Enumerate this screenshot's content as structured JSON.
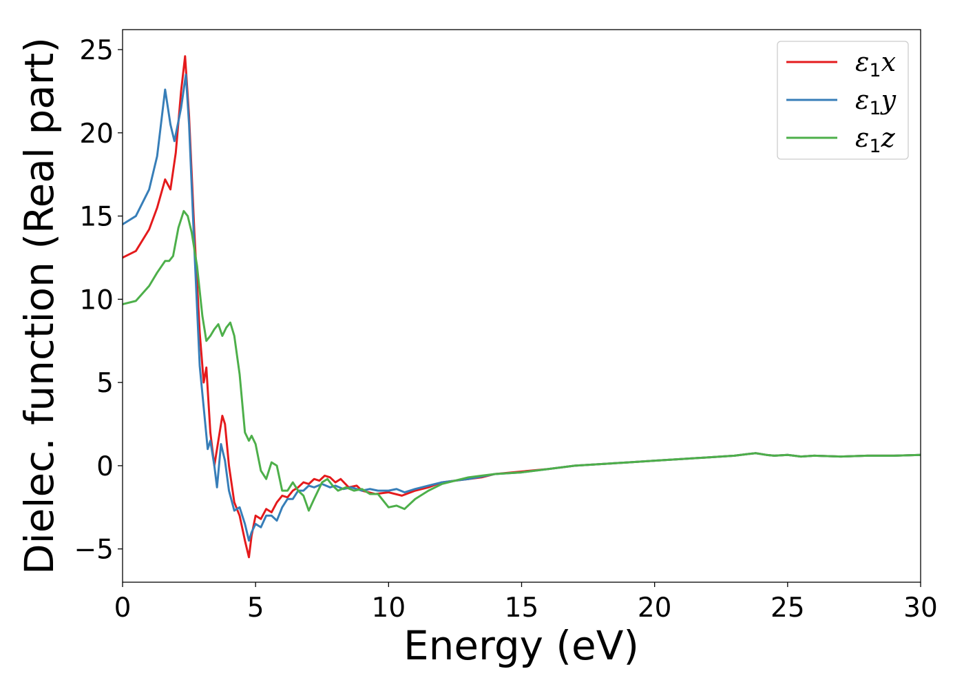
{
  "chart_data": {
    "type": "line",
    "title": "",
    "xlabel": "Energy (eV)",
    "ylabel": "Dielec. function (Real part)",
    "xlim": [
      0,
      30
    ],
    "ylim": [
      -7,
      26.2
    ],
    "xticks": [
      0,
      5,
      10,
      15,
      20,
      25,
      30
    ],
    "xtick_labels": [
      "0",
      "5",
      "10",
      "15",
      "20",
      "25",
      "30"
    ],
    "yticks": [
      -5,
      0,
      5,
      10,
      15,
      20,
      25
    ],
    "ytick_labels": [
      "−5",
      "0",
      "5",
      "10",
      "15",
      "20",
      "25"
    ],
    "grid": false,
    "legend_position": "top-right",
    "series": [
      {
        "name": "ε₁x",
        "legend_symbol": "ε",
        "legend_sub": "1",
        "legend_suffix": "x",
        "color": "#e41a1c",
        "x": [
          0,
          0.5,
          1.0,
          1.3,
          1.6,
          1.8,
          2.0,
          2.2,
          2.35,
          2.5,
          2.7,
          2.9,
          3.05,
          3.15,
          3.3,
          3.45,
          3.55,
          3.75,
          3.85,
          4.0,
          4.2,
          4.4,
          4.6,
          4.75,
          4.85,
          5.0,
          5.2,
          5.4,
          5.6,
          5.8,
          6.0,
          6.2,
          6.4,
          6.6,
          6.8,
          7.0,
          7.2,
          7.4,
          7.6,
          7.8,
          8.0,
          8.2,
          8.5,
          8.8,
          9.0,
          9.5,
          10.0,
          10.5,
          11.0,
          11.5,
          12.0,
          12.5,
          13.0,
          13.5,
          14.0,
          15.0,
          16.0,
          17.0,
          18.0,
          19.0,
          20.0,
          21.0,
          22.0,
          23.0,
          23.5,
          23.8,
          24.2,
          24.5,
          25.0,
          25.5,
          26.0,
          27.0,
          28.0,
          29.0,
          30.0
        ],
        "values": [
          12.5,
          12.9,
          14.2,
          15.5,
          17.2,
          16.6,
          18.8,
          22.5,
          24.6,
          21.0,
          14.0,
          8.0,
          5.0,
          5.9,
          2.0,
          0.0,
          1.0,
          3.0,
          2.5,
          0.0,
          -2.2,
          -3.0,
          -4.5,
          -5.5,
          -4.2,
          -3.0,
          -3.2,
          -2.6,
          -2.8,
          -2.2,
          -1.8,
          -1.9,
          -1.5,
          -1.3,
          -1.0,
          -1.1,
          -0.8,
          -0.9,
          -0.6,
          -0.7,
          -1.0,
          -0.8,
          -1.3,
          -1.2,
          -1.5,
          -1.7,
          -1.6,
          -1.8,
          -1.5,
          -1.3,
          -1.0,
          -0.9,
          -0.8,
          -0.7,
          -0.5,
          -0.35,
          -0.2,
          0.0,
          0.1,
          0.2,
          0.3,
          0.4,
          0.5,
          0.6,
          0.7,
          0.75,
          0.65,
          0.6,
          0.65,
          0.55,
          0.6,
          0.55,
          0.6,
          0.6,
          0.65
        ]
      },
      {
        "name": "ε₁y",
        "legend_symbol": "ε",
        "legend_sub": "1",
        "legend_suffix": "y",
        "color": "#377eb8",
        "x": [
          0,
          0.5,
          1.0,
          1.3,
          1.6,
          1.8,
          1.95,
          2.1,
          2.2,
          2.38,
          2.5,
          2.7,
          2.9,
          3.05,
          3.2,
          3.3,
          3.45,
          3.55,
          3.7,
          3.85,
          4.0,
          4.2,
          4.4,
          4.6,
          4.75,
          4.85,
          5.0,
          5.2,
          5.4,
          5.6,
          5.8,
          6.0,
          6.2,
          6.4,
          6.6,
          6.8,
          7.0,
          7.2,
          7.5,
          7.8,
          8.0,
          8.3,
          8.6,
          9.0,
          9.3,
          9.6,
          10.0,
          10.3,
          10.6,
          11.0,
          11.5,
          12.0,
          12.5,
          13.0,
          13.5,
          14.0,
          15.0,
          16.0,
          17.0,
          18.0,
          19.0,
          20.0,
          21.0,
          22.0,
          23.0,
          23.5,
          23.8,
          24.2,
          24.5,
          25.0,
          25.5,
          26.0,
          27.0,
          28.0,
          29.0,
          30.0
        ],
        "values": [
          14.5,
          15.0,
          16.6,
          18.6,
          22.6,
          20.5,
          19.5,
          20.7,
          21.5,
          23.5,
          20.5,
          13.0,
          6.0,
          3.5,
          1.0,
          1.5,
          0.0,
          -1.3,
          1.3,
          0.3,
          -1.5,
          -2.7,
          -2.5,
          -3.5,
          -4.5,
          -4.0,
          -3.5,
          -3.7,
          -3.0,
          -3.0,
          -3.3,
          -2.5,
          -2.0,
          -2.0,
          -1.5,
          -1.5,
          -1.2,
          -1.3,
          -1.1,
          -1.3,
          -1.2,
          -1.4,
          -1.3,
          -1.5,
          -1.4,
          -1.5,
          -1.5,
          -1.4,
          -1.6,
          -1.4,
          -1.2,
          -1.0,
          -0.9,
          -0.8,
          -0.65,
          -0.5,
          -0.4,
          -0.2,
          0.0,
          0.1,
          0.2,
          0.3,
          0.4,
          0.5,
          0.6,
          0.7,
          0.75,
          0.65,
          0.6,
          0.65,
          0.55,
          0.6,
          0.55,
          0.6,
          0.6,
          0.65
        ]
      },
      {
        "name": "ε₁z",
        "legend_symbol": "ε",
        "legend_sub": "1",
        "legend_suffix": "z",
        "color": "#4daf4a",
        "x": [
          0,
          0.5,
          1.0,
          1.3,
          1.6,
          1.75,
          1.9,
          2.1,
          2.3,
          2.45,
          2.6,
          2.8,
          3.0,
          3.15,
          3.3,
          3.45,
          3.6,
          3.75,
          3.9,
          4.05,
          4.2,
          4.4,
          4.6,
          4.75,
          4.85,
          5.0,
          5.2,
          5.4,
          5.6,
          5.8,
          6.0,
          6.2,
          6.4,
          6.6,
          6.8,
          7.0,
          7.2,
          7.5,
          7.7,
          7.9,
          8.1,
          8.4,
          8.7,
          9.0,
          9.3,
          9.6,
          10.0,
          10.3,
          10.6,
          11.0,
          11.5,
          12.0,
          12.5,
          13.0,
          13.5,
          14.0,
          15.0,
          16.0,
          17.0,
          18.0,
          19.0,
          20.0,
          21.0,
          22.0,
          23.0,
          23.5,
          23.8,
          24.2,
          24.5,
          25.0,
          25.5,
          26.0,
          27.0,
          28.0,
          29.0,
          30.0
        ],
        "values": [
          9.7,
          9.9,
          10.8,
          11.6,
          12.3,
          12.3,
          12.6,
          14.3,
          15.3,
          15.0,
          14.0,
          12.0,
          9.0,
          7.5,
          7.8,
          8.2,
          8.5,
          7.8,
          8.3,
          8.6,
          7.8,
          5.5,
          2.0,
          1.5,
          1.8,
          1.3,
          -0.3,
          -0.8,
          0.2,
          0.0,
          -1.5,
          -1.5,
          -1.0,
          -1.5,
          -1.8,
          -2.7,
          -2.0,
          -1.0,
          -0.8,
          -1.2,
          -1.5,
          -1.3,
          -1.5,
          -1.4,
          -1.7,
          -1.7,
          -2.5,
          -2.4,
          -2.6,
          -2.0,
          -1.5,
          -1.1,
          -0.9,
          -0.7,
          -0.6,
          -0.5,
          -0.4,
          -0.2,
          0.0,
          0.1,
          0.2,
          0.3,
          0.4,
          0.5,
          0.6,
          0.7,
          0.75,
          0.65,
          0.6,
          0.65,
          0.55,
          0.6,
          0.55,
          0.6,
          0.6,
          0.65
        ]
      }
    ]
  }
}
